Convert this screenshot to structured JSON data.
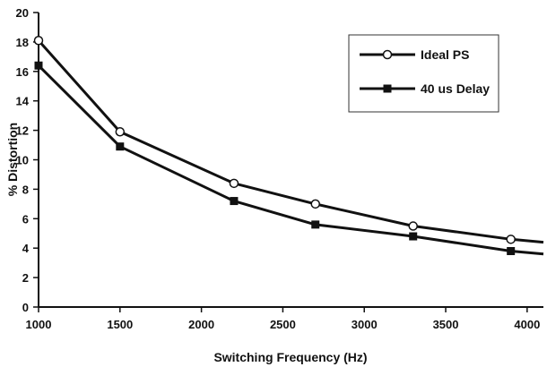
{
  "chart_data": {
    "type": "line",
    "title": "",
    "xlabel": "Switching Frequency (Hz)",
    "ylabel": "% Distortion",
    "xlim": [
      1000,
      4100
    ],
    "ylim": [
      0,
      20
    ],
    "x_ticks": [
      1000,
      1500,
      2000,
      2500,
      3000,
      3500,
      4000
    ],
    "y_ticks": [
      0,
      2,
      4,
      6,
      8,
      10,
      12,
      14,
      16,
      18,
      20
    ],
    "grid": false,
    "legend_position": "top-right",
    "series": [
      {
        "name": "Ideal PS",
        "marker": "open-circle",
        "color": "#111111",
        "x": [
          1000,
          1500,
          2200,
          2700,
          3300,
          3900,
          4100
        ],
        "y": [
          18.1,
          11.9,
          8.4,
          7.0,
          5.5,
          4.6,
          4.4
        ],
        "marked": [
          true,
          true,
          true,
          true,
          true,
          true,
          false
        ]
      },
      {
        "name": "40 us Delay",
        "marker": "filled-square",
        "color": "#111111",
        "x": [
          1000,
          1500,
          2200,
          2700,
          3300,
          3900,
          4100
        ],
        "y": [
          16.4,
          10.9,
          7.2,
          5.6,
          4.8,
          3.8,
          3.6
        ],
        "marked": [
          true,
          true,
          true,
          true,
          true,
          true,
          false
        ]
      }
    ]
  }
}
